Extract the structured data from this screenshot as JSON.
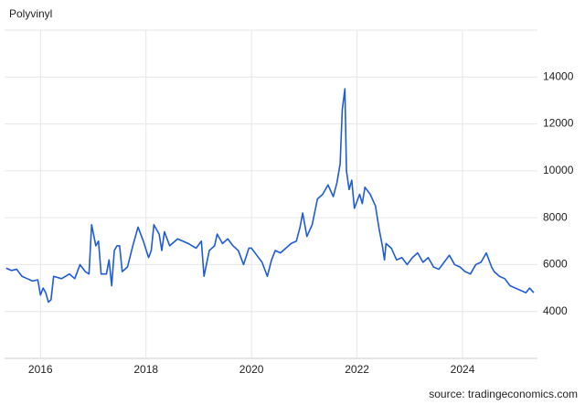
{
  "chart_data": {
    "type": "line",
    "title": "Polyvinyl",
    "source": "source: tradingeconomics.com",
    "x": [
      2015.35,
      2015.45,
      2015.55,
      2015.65,
      2015.75,
      2015.85,
      2015.95,
      2016.0,
      2016.05,
      2016.1,
      2016.15,
      2016.2,
      2016.25,
      2016.4,
      2016.55,
      2016.65,
      2016.75,
      2016.85,
      2016.92,
      2016.97,
      2017.05,
      2017.1,
      2017.15,
      2017.25,
      2017.3,
      2017.35,
      2017.4,
      2017.45,
      2017.5,
      2017.55,
      2017.65,
      2017.75,
      2017.85,
      2017.95,
      2018.05,
      2018.1,
      2018.15,
      2018.25,
      2018.3,
      2018.35,
      2018.45,
      2018.6,
      2018.8,
      2018.95,
      2019.05,
      2019.1,
      2019.2,
      2019.3,
      2019.35,
      2019.45,
      2019.55,
      2019.65,
      2019.75,
      2019.85,
      2019.95,
      2020.0,
      2020.1,
      2020.2,
      2020.3,
      2020.38,
      2020.45,
      2020.55,
      2020.65,
      2020.75,
      2020.85,
      2020.92,
      2020.97,
      2021.05,
      2021.15,
      2021.25,
      2021.35,
      2021.45,
      2021.55,
      2021.62,
      2021.68,
      2021.72,
      2021.77,
      2021.8,
      2021.85,
      2021.9,
      2021.95,
      2022.05,
      2022.1,
      2022.15,
      2022.25,
      2022.35,
      2022.42,
      2022.48,
      2022.52,
      2022.55,
      2022.65,
      2022.75,
      2022.85,
      2022.95,
      2023.05,
      2023.15,
      2023.25,
      2023.35,
      2023.45,
      2023.55,
      2023.65,
      2023.75,
      2023.85,
      2023.95,
      2024.05,
      2024.15,
      2024.25,
      2024.35,
      2024.45,
      2024.55,
      2024.6,
      2024.7,
      2024.8,
      2024.9,
      2025.0,
      2025.1,
      2025.2,
      2025.27,
      2025.35
    ],
    "series": [
      {
        "name": "Polyvinyl",
        "color": "#1f5bd8",
        "values": [
          5850,
          5750,
          5800,
          5500,
          5400,
          5300,
          5350,
          4700,
          5000,
          4800,
          4400,
          4500,
          5500,
          5400,
          5600,
          5400,
          6000,
          5700,
          5600,
          7700,
          6800,
          7000,
          5600,
          5600,
          6200,
          5100,
          6600,
          6800,
          6800,
          5700,
          5900,
          6800,
          7600,
          7000,
          6300,
          6600,
          7700,
          7300,
          6600,
          7400,
          6800,
          7100,
          6900,
          6700,
          7000,
          5500,
          6600,
          6800,
          7300,
          6900,
          7100,
          6800,
          6600,
          6000,
          6700,
          6700,
          6400,
          6100,
          5500,
          6200,
          6600,
          6500,
          6700,
          6900,
          7000,
          7600,
          8200,
          7200,
          7700,
          8800,
          9000,
          9400,
          8900,
          9500,
          10300,
          12600,
          13500,
          10000,
          9200,
          9600,
          8400,
          9000,
          8600,
          9300,
          9000,
          8500,
          7500,
          6800,
          6200,
          6900,
          6700,
          6200,
          6300,
          6000,
          6300,
          6500,
          6100,
          6300,
          5900,
          5800,
          6100,
          6400,
          6000,
          5900,
          5700,
          5600,
          6000,
          6100,
          6500,
          5900,
          5700,
          5500,
          5400,
          5100,
          5000,
          4900,
          4800,
          5000,
          4800
        ]
      }
    ],
    "xlim": [
      2015.32,
      2025.42
    ],
    "xticks": [
      2016,
      2018,
      2020,
      2022,
      2024
    ],
    "ylim": [
      2000,
      16000
    ],
    "yticks": [
      4000,
      6000,
      8000,
      10000,
      12000,
      14000
    ],
    "grid": true
  }
}
